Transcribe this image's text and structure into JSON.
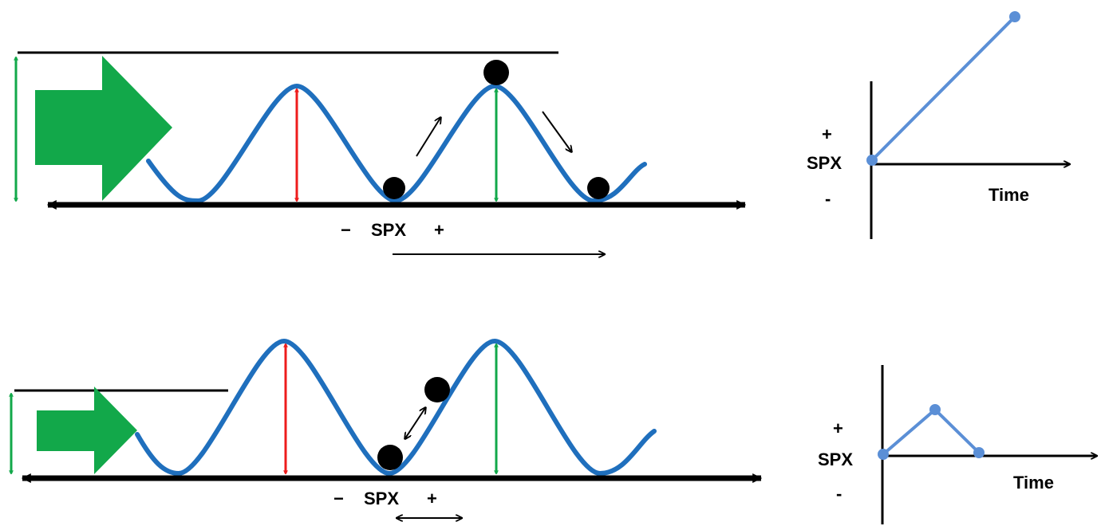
{
  "top_panel": {
    "axis_minus": "−",
    "axis_label": "SPX",
    "axis_plus": "+"
  },
  "bottom_panel": {
    "axis_minus": "−",
    "axis_label": "SPX",
    "axis_plus": "+"
  },
  "top_graph": {
    "plus": "+",
    "ylabel": "SPX",
    "minus": "-",
    "xlabel": "Time"
  },
  "bottom_graph": {
    "plus": "+",
    "ylabel": "SPX",
    "minus": "-",
    "xlabel": "Time"
  },
  "colors": {
    "wave": "#1f6fbd",
    "push_arrow": "#12a84a",
    "amplitude_red": "#ee1c1c",
    "amplitude_green": "#12a84a",
    "graph_line": "#5b8fd6",
    "ink": "#000000"
  }
}
